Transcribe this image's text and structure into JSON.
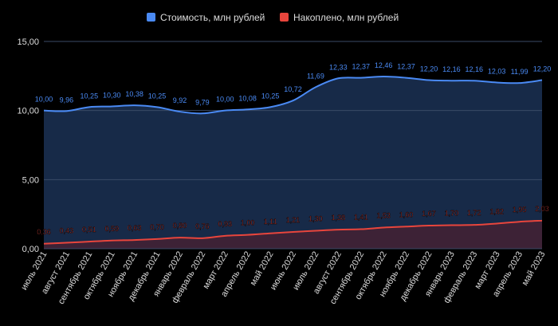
{
  "chart_data": {
    "type": "area",
    "title": "",
    "xlabel": "",
    "ylabel": "",
    "ylim": [
      0,
      15
    ],
    "yticks": [
      "0,00",
      "5,00",
      "10,00",
      "15,00"
    ],
    "ytick_values": [
      0,
      5,
      10,
      15
    ],
    "grid": true,
    "legend_position": "top",
    "categories": [
      "июль 2021",
      "август 2021",
      "сентябрь 2021",
      "октябрь 2021",
      "ноябрь 2021",
      "декабрь 2021",
      "январь 2022",
      "февраль 2022",
      "март 2022",
      "апрель 2022",
      "май 2022",
      "июнь 2022",
      "июль 2022",
      "август 2022",
      "сентябрь 2022",
      "октябрь 2022",
      "ноябрь 2022",
      "декабрь 2022",
      "январь 2023",
      "февраль 2023",
      "март 2023",
      "апрель 2023",
      "май 2023"
    ],
    "series": [
      {
        "name": "Стоимость, млн рублей",
        "color": "#4a8af4",
        "fill": "#172a48",
        "values": [
          10.0,
          9.96,
          10.25,
          10.3,
          10.38,
          10.25,
          9.92,
          9.79,
          10.0,
          10.08,
          10.25,
          10.72,
          11.69,
          12.33,
          12.37,
          12.46,
          12.37,
          12.2,
          12.16,
          12.16,
          12.03,
          11.99,
          12.2
        ],
        "labels": [
          "10,00",
          "9,96",
          "10,25",
          "10,30",
          "10,38",
          "10,25",
          "9,92",
          "9,79",
          "10,00",
          "10,08",
          "10,25",
          "10,72",
          "11,69",
          "12,33",
          "12,37",
          "12,46",
          "12,37",
          "12,20",
          "12,16",
          "12,16",
          "12,03",
          "11,99",
          "12,20"
        ]
      },
      {
        "name": "Накоплено, млн рублей",
        "color": "#e8453c",
        "fill": "#3d2236",
        "values": [
          0.36,
          0.43,
          0.51,
          0.59,
          0.63,
          0.7,
          0.8,
          0.76,
          0.93,
          1.0,
          1.11,
          1.21,
          1.3,
          1.38,
          1.41,
          1.53,
          1.6,
          1.67,
          1.7,
          1.72,
          1.82,
          1.95,
          2.03
        ],
        "labels": [
          "0,36",
          "0,43",
          "0,51",
          "0,59",
          "0,63",
          "0,70",
          "0,80",
          "0,76",
          "0,93",
          "1,00",
          "1,11",
          "1,21",
          "1,30",
          "1,38",
          "1,41",
          "1,53",
          "1,60",
          "1,67",
          "1,70",
          "1,72",
          "1,82",
          "1,95",
          "2,03"
        ]
      }
    ]
  }
}
